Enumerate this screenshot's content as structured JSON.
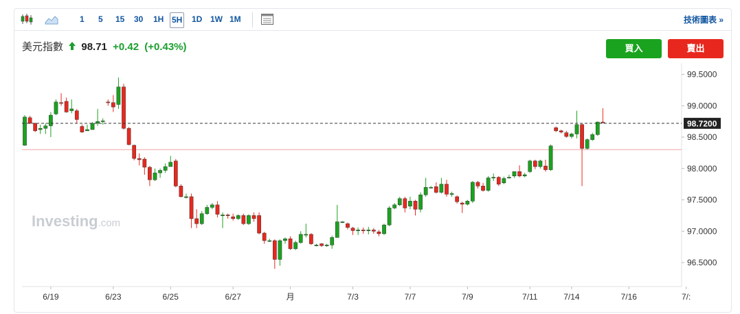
{
  "toolbar": {
    "intervals": [
      "1",
      "5",
      "15",
      "30",
      "1H",
      "5H",
      "1D",
      "1W",
      "1M"
    ],
    "selected_interval": "5H",
    "technical_link": "技術圖表 »"
  },
  "instrument": {
    "name": "美元指數",
    "last": "98.71",
    "change": "+0.42",
    "change_pct": "(+0.43%)"
  },
  "actions": {
    "buy": "買入",
    "sell": "賣出"
  },
  "watermark": {
    "brand": "Investing",
    "suffix": ".com"
  },
  "colors": {
    "up": "#1aa31e",
    "down": "#e8281e",
    "accent": "#1256a0"
  },
  "chart_data": {
    "type": "candlestick",
    "y_range": [
      96.2,
      99.7
    ],
    "y_ticks": [
      "99.5000",
      "99.0000",
      "98.5000",
      "98.0000",
      "97.5000",
      "97.0000",
      "96.5000"
    ],
    "y_tick_values": [
      99.5,
      99.0,
      98.5,
      98.0,
      97.5,
      97.0,
      96.5
    ],
    "current_price_label": "98.7200",
    "current_price": 98.72,
    "reference_line": 98.3,
    "x_labels": [
      {
        "label": "6/19",
        "index": 5
      },
      {
        "label": "6/23",
        "index": 17
      },
      {
        "label": "6/25",
        "index": 28
      },
      {
        "label": "6/27",
        "index": 40
      },
      {
        "label": "月",
        "index": 51
      },
      {
        "label": "7/3",
        "index": 63
      },
      {
        "label": "7/7",
        "index": 74
      },
      {
        "label": "7/9",
        "index": 85
      },
      {
        "label": "7/11",
        "index": 97
      },
      {
        "label": "7/14",
        "index": 105
      },
      {
        "label": "7/16",
        "index": 116
      },
      {
        "label": "7/:",
        "index": 127
      }
    ],
    "candles": [
      [
        98.37,
        98.82,
        98.36,
        98.85
      ],
      [
        98.81,
        98.72,
        98.71,
        98.84
      ],
      [
        98.72,
        98.6,
        98.58,
        98.73
      ],
      [
        98.62,
        98.64,
        98.55,
        98.7
      ],
      [
        98.64,
        98.68,
        98.55,
        98.72
      ],
      [
        98.68,
        98.85,
        98.5,
        98.9
      ],
      [
        98.87,
        99.06,
        98.85,
        99.1
      ],
      [
        99.05,
        99.04,
        99.0,
        99.2
      ],
      [
        99.07,
        98.9,
        98.89,
        99.13
      ],
      [
        98.92,
        98.95,
        98.88,
        99.1
      ],
      [
        98.92,
        98.78,
        98.72,
        98.95
      ],
      [
        98.67,
        98.58,
        98.57,
        98.7
      ],
      [
        98.6,
        98.62,
        98.6,
        98.7
      ],
      [
        98.62,
        98.72,
        98.62,
        98.74
      ],
      [
        98.72,
        98.75,
        98.68,
        98.95
      ],
      [
        98.75,
        98.76,
        98.7,
        98.8
      ],
      [
        99.06,
        99.05,
        99.0,
        99.1
      ],
      [
        99.05,
        98.98,
        98.9,
        99.17
      ],
      [
        99.02,
        99.3,
        98.95,
        99.45
      ],
      [
        99.3,
        98.64,
        98.62,
        99.35
      ],
      [
        98.64,
        98.38,
        98.37,
        98.66
      ],
      [
        98.37,
        98.16,
        98.13,
        98.38
      ],
      [
        98.16,
        98.14,
        98.05,
        98.24
      ],
      [
        98.15,
        98.02,
        97.9,
        98.18
      ],
      [
        98.02,
        97.82,
        97.72,
        98.04
      ],
      [
        97.82,
        97.93,
        97.8,
        98.0
      ],
      [
        97.93,
        97.97,
        97.85,
        98.0
      ],
      [
        97.97,
        98.03,
        97.93,
        98.08
      ],
      [
        98.03,
        98.1,
        98.03,
        98.2
      ],
      [
        98.12,
        97.72,
        97.7,
        98.15
      ],
      [
        97.72,
        97.55,
        97.54,
        97.75
      ],
      [
        97.55,
        97.55,
        97.52,
        97.6
      ],
      [
        97.55,
        97.2,
        97.05,
        97.6
      ],
      [
        97.2,
        97.12,
        97.05,
        97.35
      ],
      [
        97.12,
        97.28,
        97.1,
        97.32
      ],
      [
        97.28,
        97.38,
        97.26,
        97.42
      ],
      [
        97.38,
        97.42,
        97.35,
        97.45
      ],
      [
        97.42,
        97.27,
        97.22,
        97.48
      ],
      [
        97.26,
        97.26,
        97.05,
        97.3
      ],
      [
        97.26,
        97.25,
        97.2,
        97.28
      ],
      [
        97.23,
        97.2,
        97.17,
        97.28
      ],
      [
        97.2,
        97.25,
        97.18,
        97.27
      ],
      [
        97.25,
        97.12,
        97.1,
        97.28
      ],
      [
        97.12,
        97.25,
        97.1,
        97.27
      ],
      [
        97.25,
        97.2,
        97.15,
        97.3
      ],
      [
        97.25,
        96.97,
        96.95,
        97.3
      ],
      [
        96.97,
        96.85,
        96.8,
        96.99
      ],
      [
        96.85,
        96.85,
        96.83,
        96.88
      ],
      [
        96.85,
        96.55,
        96.4,
        96.87
      ],
      [
        96.55,
        96.85,
        96.45,
        96.87
      ],
      [
        96.85,
        96.88,
        96.8,
        96.9
      ],
      [
        96.88,
        96.72,
        96.7,
        96.92
      ],
      [
        96.72,
        96.82,
        96.7,
        96.85
      ],
      [
        96.82,
        96.95,
        96.8,
        97.0
      ],
      [
        96.95,
        96.95,
        96.9,
        97.12
      ],
      [
        96.95,
        96.8,
        96.78,
        96.97
      ],
      [
        96.78,
        96.78,
        96.76,
        96.8
      ],
      [
        96.8,
        96.77,
        96.75,
        96.81
      ],
      [
        96.77,
        96.78,
        96.75,
        96.8
      ],
      [
        96.78,
        96.9,
        96.72,
        96.93
      ],
      [
        96.9,
        97.15,
        96.9,
        97.42
      ],
      [
        97.15,
        97.15,
        97.13,
        97.16
      ],
      [
        97.12,
        97.06,
        97.03,
        97.14
      ],
      [
        97.05,
        97.01,
        96.94,
        97.07
      ],
      [
        97.01,
        97.02,
        96.94,
        97.06
      ],
      [
        97.02,
        97.01,
        96.96,
        97.06
      ],
      [
        97.01,
        97.02,
        96.95,
        97.07
      ],
      [
        97.02,
        97.0,
        96.96,
        97.05
      ],
      [
        96.99,
        96.96,
        96.92,
        97.02
      ],
      [
        96.96,
        97.1,
        96.94,
        97.12
      ],
      [
        97.1,
        97.37,
        97.08,
        97.4
      ],
      [
        97.37,
        97.42,
        97.35,
        97.45
      ],
      [
        97.42,
        97.52,
        97.4,
        97.55
      ],
      [
        97.52,
        97.37,
        97.3,
        97.55
      ],
      [
        97.4,
        97.48,
        97.35,
        97.55
      ],
      [
        97.48,
        97.35,
        97.25,
        97.5
      ],
      [
        97.35,
        97.58,
        97.3,
        97.62
      ],
      [
        97.58,
        97.7,
        97.55,
        97.85
      ],
      [
        97.7,
        97.7,
        97.68,
        97.72
      ],
      [
        97.71,
        97.62,
        97.6,
        97.78
      ],
      [
        97.62,
        97.75,
        97.6,
        97.85
      ],
      [
        97.75,
        97.59,
        97.55,
        97.82
      ],
      [
        97.59,
        97.6,
        97.55,
        97.63
      ],
      [
        97.55,
        97.47,
        97.44,
        97.57
      ],
      [
        97.45,
        97.43,
        97.29,
        97.47
      ],
      [
        97.43,
        97.48,
        97.41,
        97.5
      ],
      [
        97.48,
        97.78,
        97.45,
        97.8
      ],
      [
        97.78,
        97.72,
        97.68,
        97.8
      ],
      [
        97.72,
        97.65,
        97.63,
        97.77
      ],
      [
        97.65,
        97.85,
        97.63,
        97.88
      ],
      [
        97.85,
        97.86,
        97.8,
        97.92
      ],
      [
        97.86,
        97.75,
        97.72,
        97.88
      ],
      [
        97.77,
        97.84,
        97.75,
        97.87
      ],
      [
        97.85,
        97.86,
        97.84,
        97.9
      ],
      [
        97.88,
        97.95,
        97.85,
        97.95
      ],
      [
        97.95,
        97.88,
        97.86,
        98.05
      ],
      [
        97.88,
        97.9,
        97.86,
        97.93
      ],
      [
        97.95,
        98.12,
        97.93,
        98.14
      ],
      [
        98.12,
        98.03,
        97.99,
        98.14
      ],
      [
        98.03,
        98.12,
        98.0,
        98.14
      ],
      [
        98.04,
        97.98,
        97.95,
        98.14
      ],
      [
        97.98,
        98.36,
        97.96,
        98.38
      ],
      [
        98.65,
        98.6,
        98.58,
        98.67
      ],
      [
        98.6,
        98.58,
        98.56,
        98.62
      ],
      [
        98.57,
        98.51,
        98.49,
        98.6
      ],
      [
        98.51,
        98.55,
        98.48,
        98.57
      ],
      [
        98.55,
        98.7,
        98.48,
        98.92
      ],
      [
        98.7,
        98.32,
        97.72,
        98.72
      ],
      [
        98.32,
        98.46,
        98.3,
        98.48
      ],
      [
        98.46,
        98.54,
        98.44,
        98.57
      ],
      [
        98.54,
        98.74,
        98.52,
        98.75
      ],
      [
        98.74,
        98.73,
        98.72,
        98.96
      ]
    ]
  }
}
